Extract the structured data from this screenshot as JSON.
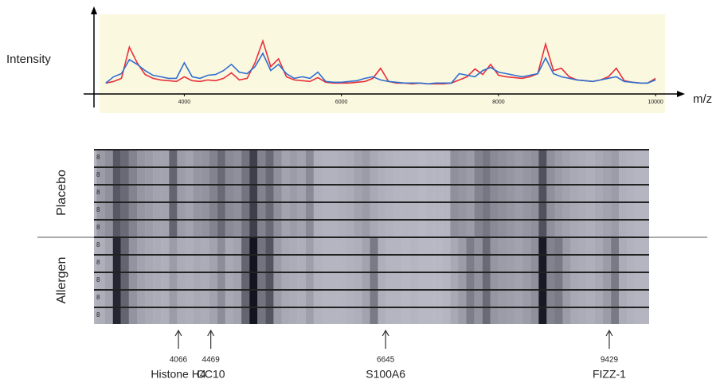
{
  "chart_data": [
    {
      "type": "line",
      "y_label": "Intensity",
      "x_label": "m/z",
      "xlim": [
        2850,
        10070
      ],
      "ylim": [
        0,
        100
      ],
      "xticks": [
        4000,
        6000,
        8000,
        10000
      ],
      "x": [
        3000,
        3100,
        3200,
        3300,
        3400,
        3500,
        3600,
        3700,
        3800,
        3900,
        4000,
        4100,
        4200,
        4300,
        4400,
        4500,
        4600,
        4700,
        4800,
        4900,
        5000,
        5100,
        5200,
        5300,
        5400,
        5500,
        5600,
        5700,
        5800,
        5900,
        6000,
        6100,
        6200,
        6300,
        6400,
        6500,
        6600,
        6700,
        6800,
        6900,
        7000,
        7100,
        7200,
        7300,
        7400,
        7500,
        7600,
        7700,
        7800,
        7900,
        8000,
        8100,
        8200,
        8300,
        8400,
        8500,
        8600,
        8700,
        8800,
        8900,
        9000,
        9100,
        9200,
        9300,
        9400,
        9500,
        9600,
        9700,
        9800,
        9900,
        10000
      ],
      "series": [
        {
          "color": "#2f6fd0",
          "values": [
            14,
            22,
            26,
            44,
            38,
            30,
            24,
            22,
            20,
            20,
            40,
            22,
            20,
            24,
            25,
            30,
            38,
            28,
            26,
            35,
            52,
            30,
            38,
            26,
            20,
            22,
            20,
            28,
            16,
            15,
            15,
            16,
            17,
            20,
            22,
            18,
            16,
            15,
            14,
            14,
            14,
            13,
            14,
            14,
            14,
            26,
            24,
            22,
            30,
            34,
            28,
            26,
            24,
            22,
            24,
            26,
            46,
            26,
            22,
            20,
            18,
            17,
            16,
            18,
            20,
            22,
            16,
            15,
            14,
            14,
            18
          ]
        },
        {
          "color": "#e8303a",
          "values": [
            14,
            16,
            20,
            60,
            40,
            25,
            20,
            18,
            17,
            16,
            22,
            17,
            16,
            18,
            17,
            20,
            27,
            18,
            20,
            40,
            68,
            35,
            45,
            22,
            18,
            17,
            16,
            21,
            15,
            14,
            14,
            14,
            15,
            16,
            20,
            33,
            16,
            14,
            14,
            13,
            14,
            13,
            13,
            13,
            14,
            18,
            22,
            32,
            25,
            38,
            24,
            22,
            21,
            20,
            22,
            26,
            64,
            30,
            33,
            22,
            18,
            17,
            16,
            18,
            22,
            33,
            17,
            15,
            14,
            14,
            20
          ]
        }
      ]
    },
    {
      "type": "gel",
      "xlim": [
        3015,
        9925
      ],
      "groups": [
        {
          "label": "Placebo",
          "lanes": 5
        },
        {
          "label": "Allergen",
          "lanes": 5
        }
      ],
      "markers": [
        {
          "mz": 4066,
          "name": "Histone H4"
        },
        {
          "mz": 4469,
          "name": "CC10"
        },
        {
          "mz": 6645,
          "name": "S100A6"
        },
        {
          "mz": 9429,
          "name": "FIZZ-1"
        }
      ]
    }
  ]
}
